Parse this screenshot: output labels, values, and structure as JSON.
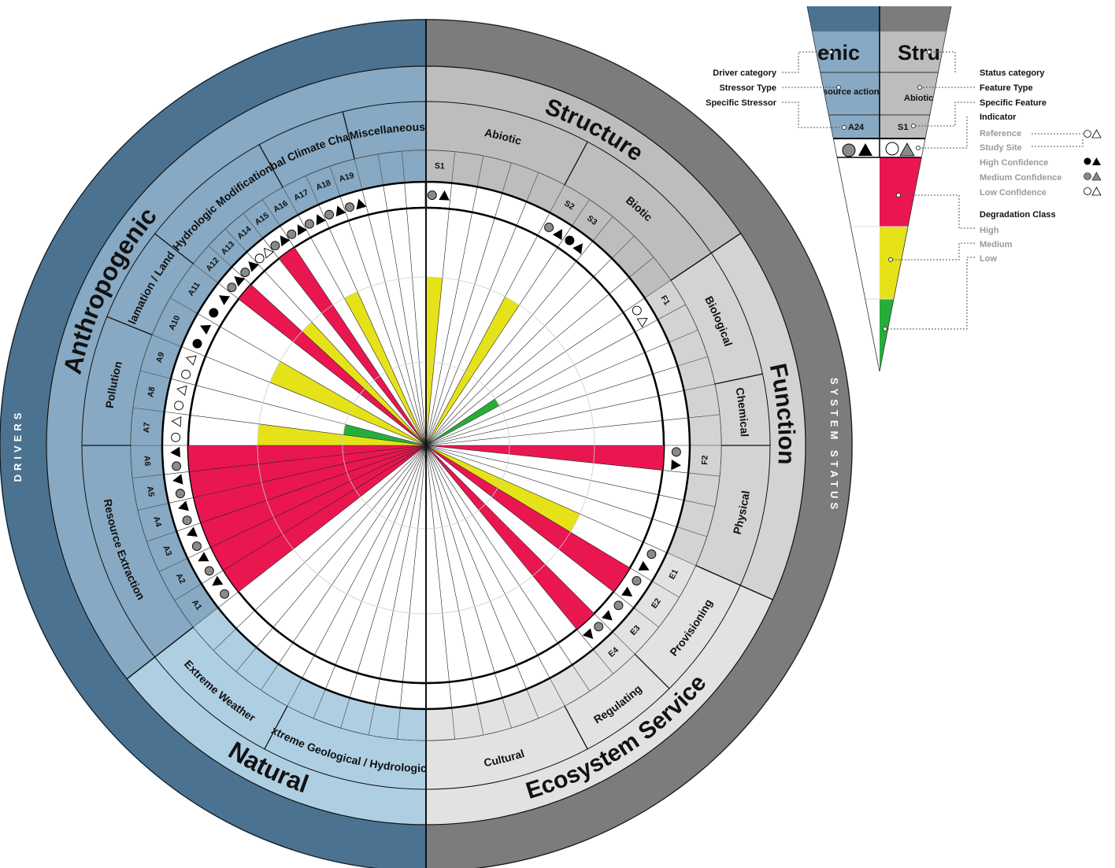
{
  "side_labels": {
    "drivers": "DRIVERS",
    "system_status": "SYSTEM STATUS"
  },
  "driver_categories": [
    {
      "id": "anthro",
      "label": "Anthropogenic",
      "color": "#87a9c3"
    },
    {
      "id": "natural",
      "label": "Natural",
      "color": "#aecfe2"
    }
  ],
  "status_categories": [
    {
      "id": "structure",
      "label": "Structure",
      "color": "#bdbdbd"
    },
    {
      "id": "function",
      "label": "Function",
      "color": "#d3d3d3"
    },
    {
      "id": "ecosystem",
      "label": "Ecosystem Service",
      "color": "#e2e2e2"
    }
  ],
  "colors": {
    "anthro_outer": "#4b7391",
    "anthro_mid": "#87a9c3",
    "natural_mid": "#aecfe2",
    "status_outer": "#7c7c7c",
    "grid_line": "#bdbdbd",
    "high": "#ea1650",
    "medium": "#e6e21a",
    "low": "#27ad3a",
    "medium_conf": "#8a8a8a"
  },
  "sectors": [
    {
      "label": "Resource Extraction",
      "cat": "anthro",
      "a1": 232,
      "a2": 270,
      "items": [
        {
          "code": "A1",
          "deg": "high",
          "conf": "medium"
        },
        {
          "code": "A2",
          "deg": "high",
          "conf": "medium"
        },
        {
          "code": "A3",
          "deg": "high",
          "conf": "medium"
        },
        {
          "code": "A4",
          "deg": "high",
          "conf": "medium"
        },
        {
          "code": "A5",
          "deg": "high",
          "conf": "medium"
        },
        {
          "code": "A6",
          "deg": "high",
          "conf": "medium"
        }
      ]
    },
    {
      "label": "Pollution",
      "cat": "anthro",
      "a1": 270,
      "a2": 292,
      "items": [
        {
          "code": "A7",
          "deg": "medium",
          "conf": "low"
        },
        {
          "code": "A8",
          "deg": "low",
          "conf": "low"
        },
        {
          "code": "A9",
          "deg": null,
          "conf": "low"
        }
      ]
    },
    {
      "label": "Reclamation / Land use",
      "cat": "anthro",
      "a1": 292,
      "a2": 308,
      "items": [
        {
          "code": "A10",
          "deg": "medium",
          "conf": "high"
        },
        {
          "code": "A11",
          "deg": null,
          "conf": "high"
        }
      ]
    },
    {
      "label": "Hydrologic Modification",
      "cat": "anthro",
      "a1": 308,
      "a2": 331,
      "items": [
        {
          "code": "A12",
          "deg": "high",
          "conf": "medium"
        },
        {
          "code": "A13",
          "deg": "medium",
          "conf": "medium"
        },
        {
          "code": "A14",
          "deg": null,
          "conf": "low"
        },
        {
          "code": "A15",
          "deg": "high",
          "conf": "medium"
        },
        {
          "code": "A16",
          "deg": null,
          "conf": "medium"
        }
      ]
    },
    {
      "label": "Global Climate Change",
      "cat": "anthro",
      "a1": 331,
      "a2": 346,
      "items": [
        {
          "code": "A17",
          "deg": "medium",
          "conf": "medium"
        },
        {
          "code": "A18",
          "deg": null,
          "conf": "medium"
        },
        {
          "code": "A19",
          "deg": null,
          "conf": "medium"
        }
      ]
    },
    {
      "label": "Miscellaneous",
      "cat": "anthro",
      "a1": 346,
      "a2": 360,
      "items": [
        {
          "code": "",
          "deg": null,
          "conf": null
        },
        {
          "code": "",
          "deg": null,
          "conf": null
        },
        {
          "code": "",
          "deg": null,
          "conf": null
        }
      ]
    },
    {
      "label": "Abiotic",
      "cat": "structure",
      "a1": 0,
      "a2": 28,
      "items": [
        {
          "code": "S1",
          "deg": "medium",
          "conf": "medium"
        },
        {
          "code": "",
          "deg": null,
          "conf": null
        },
        {
          "code": "",
          "deg": null,
          "conf": null
        },
        {
          "code": "",
          "deg": null,
          "conf": null
        },
        {
          "code": "",
          "deg": null,
          "conf": null
        }
      ]
    },
    {
      "label": "Biotic",
      "cat": "structure",
      "a1": 28,
      "a2": 56,
      "items": [
        {
          "code": "S2",
          "deg": "medium",
          "conf": "medium"
        },
        {
          "code": "S3",
          "deg": null,
          "conf": "high"
        },
        {
          "code": "",
          "deg": null,
          "conf": null
        },
        {
          "code": "",
          "deg": null,
          "conf": null
        },
        {
          "code": "",
          "deg": null,
          "conf": null
        }
      ]
    },
    {
      "label": "Biological",
      "cat": "function",
      "a1": 56,
      "a2": 78,
      "items": [
        {
          "code": "F1",
          "deg": "low",
          "conf": "low"
        },
        {
          "code": "",
          "deg": null,
          "conf": null
        },
        {
          "code": "",
          "deg": null,
          "conf": null
        },
        {
          "code": "",
          "deg": null,
          "conf": null
        }
      ]
    },
    {
      "label": "Chemical",
      "cat": "function",
      "a1": 78,
      "a2": 90,
      "items": [
        {
          "code": "",
          "deg": null,
          "conf": null
        },
        {
          "code": "",
          "deg": null,
          "conf": null
        }
      ]
    },
    {
      "label": "Physical",
      "cat": "function",
      "a1": 90,
      "a2": 114,
      "items": [
        {
          "code": "F2",
          "deg": "high",
          "conf": "medium"
        },
        {
          "code": "",
          "deg": null,
          "conf": null
        },
        {
          "code": "",
          "deg": null,
          "conf": null
        },
        {
          "code": "",
          "deg": null,
          "conf": null
        }
      ]
    },
    {
      "label": "Provisioning",
      "cat": "ecosystem",
      "a1": 114,
      "a2": 135,
      "items": [
        {
          "code": "E1",
          "deg": "medium",
          "conf": "medium"
        },
        {
          "code": "E2",
          "deg": "high",
          "conf": "medium"
        },
        {
          "code": "E3",
          "deg": null,
          "conf": "medium"
        }
      ]
    },
    {
      "label": "Regulating",
      "cat": "ecosystem",
      "a1": 135,
      "a2": 152,
      "items": [
        {
          "code": "E4",
          "deg": "high",
          "conf": "medium"
        },
        {
          "code": "",
          "deg": null,
          "conf": null
        },
        {
          "code": "",
          "deg": null,
          "conf": null
        }
      ]
    },
    {
      "label": "Cultural",
      "cat": "ecosystem",
      "a1": 152,
      "a2": 180,
      "items": [
        {
          "code": "",
          "deg": null,
          "conf": null
        },
        {
          "code": "",
          "deg": null,
          "conf": null
        },
        {
          "code": "",
          "deg": null,
          "conf": null
        },
        {
          "code": "",
          "deg": null,
          "conf": null
        },
        {
          "code": "",
          "deg": null,
          "conf": null
        }
      ]
    },
    {
      "label": "Extreme Geological / Hydrological",
      "cat": "natural",
      "a1": 180,
      "a2": 208,
      "items": [
        {
          "code": "",
          "deg": null,
          "conf": null
        },
        {
          "code": "",
          "deg": null,
          "conf": null
        },
        {
          "code": "",
          "deg": null,
          "conf": null
        },
        {
          "code": "",
          "deg": null,
          "conf": null
        },
        {
          "code": "",
          "deg": null,
          "conf": null
        }
      ]
    },
    {
      "label": "Extreme Weather",
      "cat": "natural",
      "a1": 208,
      "a2": 232,
      "items": [
        {
          "code": "",
          "deg": null,
          "conf": null
        },
        {
          "code": "",
          "deg": null,
          "conf": null
        },
        {
          "code": "",
          "deg": null,
          "conf": null
        },
        {
          "code": "",
          "deg": null,
          "conf": null
        }
      ]
    }
  ],
  "legend": {
    "driver_category": "Driver category",
    "stressor_type": "Stressor Type",
    "specific_stressor": "Specific Stressor",
    "status_category": "Status category",
    "feature_type": "Feature Type",
    "specific_feature": "Specific Feature",
    "indicator": "Indicator",
    "reference": "Reference",
    "study_site": "Study Site",
    "high_confidence": "High Confidence",
    "medium_confidence": "Medium Confidence",
    "low_confidence": "Low Confidence",
    "degradation_class": "Degradation Class",
    "high": "High",
    "medium": "Medium",
    "low": "Low",
    "wedge_driver": "enic",
    "wedge_status": "Stru",
    "wedge_stressor": "source action",
    "wedge_feature": "Abiotic",
    "wedge_stressor_code": "A24",
    "wedge_feature_code": "S1"
  }
}
